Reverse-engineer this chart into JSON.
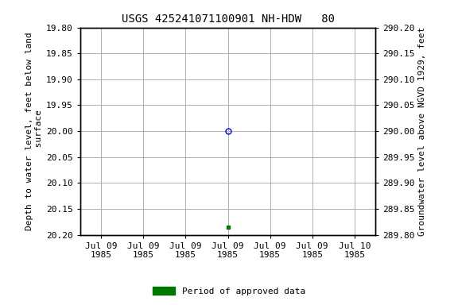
{
  "title": "USGS 425241071100901 NH-HDW   80",
  "ylabel_left": "Depth to water level, feet below land\n surface",
  "ylabel_right": "Groundwater level above NGVD 1929, feet",
  "ylim_left_top": 19.8,
  "ylim_left_bottom": 20.2,
  "ylim_right_bottom": 289.8,
  "ylim_right_top": 290.2,
  "y_ticks_left": [
    19.8,
    19.85,
    19.9,
    19.95,
    20.0,
    20.05,
    20.1,
    20.15,
    20.2
  ],
  "y_ticks_right": [
    289.8,
    289.85,
    289.9,
    289.95,
    290.0,
    290.05,
    290.1,
    290.15,
    290.2
  ],
  "x_ticks": [
    0,
    1,
    2,
    3,
    4,
    5,
    6
  ],
  "x_tick_labels": [
    "Jul 09\n1985",
    "Jul 09\n1985",
    "Jul 09\n1985",
    "Jul 09\n1985",
    "Jul 09\n1985",
    "Jul 09\n1985",
    "Jul 10\n1985"
  ],
  "xlim": [
    -0.5,
    6.5
  ],
  "data_point_open_x": 3,
  "data_point_open_y": 20.0,
  "data_point_open_color": "#0000cc",
  "data_point_filled_x": 3,
  "data_point_filled_y": 20.185,
  "data_point_filled_color": "#007700",
  "legend_label": "Period of approved data",
  "legend_color": "#007700",
  "bg_color": "#ffffff",
  "grid_color": "#b0b0b0",
  "font_family": "monospace",
  "title_fontsize": 10,
  "axis_label_fontsize": 8,
  "tick_fontsize": 8
}
